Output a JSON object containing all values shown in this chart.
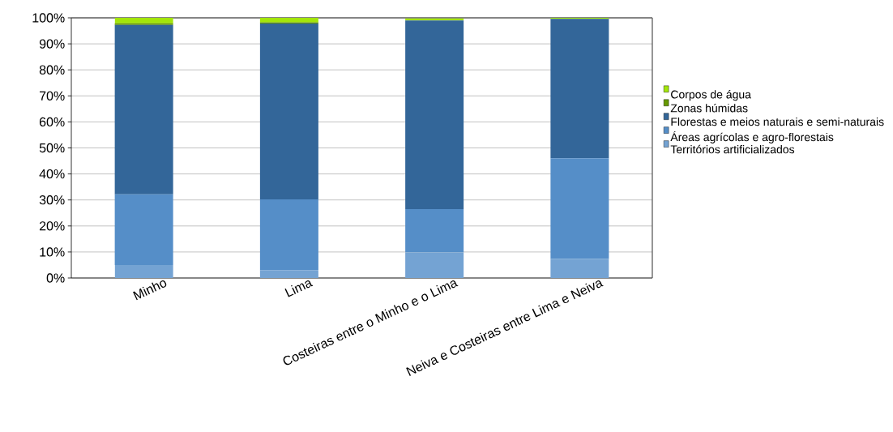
{
  "chart_data": {
    "type": "bar",
    "stacked": true,
    "categories": [
      "Minho",
      "Lima",
      "Costeiras entre o Minho e o Lima",
      "Neiva e Costeiras entre Lima e Neiva"
    ],
    "series": [
      {
        "name": "Territórios artificializados",
        "color": "#74a3d3",
        "values": [
          5,
          3,
          9.8,
          7.3
        ]
      },
      {
        "name": "Áreas agrícolas e agro-florestais",
        "color": "#558ec8",
        "values": [
          27.2,
          27.2,
          16.7,
          38.7
        ]
      },
      {
        "name": "Florestas e meios naturais e semi-naturais",
        "color": "#336699",
        "values": [
          65.1,
          67.6,
          72.5,
          53.6
        ]
      },
      {
        "name": "Zonas húmidas",
        "color": "#669900",
        "values": [
          0.6,
          0.5,
          null,
          0.1
        ]
      },
      {
        "name": "Corpos de água",
        "color": "#a3e60a",
        "values": [
          2.1,
          1.7,
          0.8,
          0.3
        ]
      }
    ],
    "ylim": [
      0,
      100
    ],
    "yticks": [
      {
        "value": 0,
        "label": "0%"
      },
      {
        "value": 10,
        "label": "10%"
      },
      {
        "value": 20,
        "label": "20%"
      },
      {
        "value": 30,
        "label": "30%"
      },
      {
        "value": 40,
        "label": "40%"
      },
      {
        "value": 50,
        "label": "50%"
      },
      {
        "value": 60,
        "label": "60%"
      },
      {
        "value": 70,
        "label": "70%"
      },
      {
        "value": 80,
        "label": "80%"
      },
      {
        "value": 90,
        "label": "90%"
      },
      {
        "value": 100,
        "label": "100%"
      }
    ],
    "grid": "y",
    "legend": "right"
  }
}
